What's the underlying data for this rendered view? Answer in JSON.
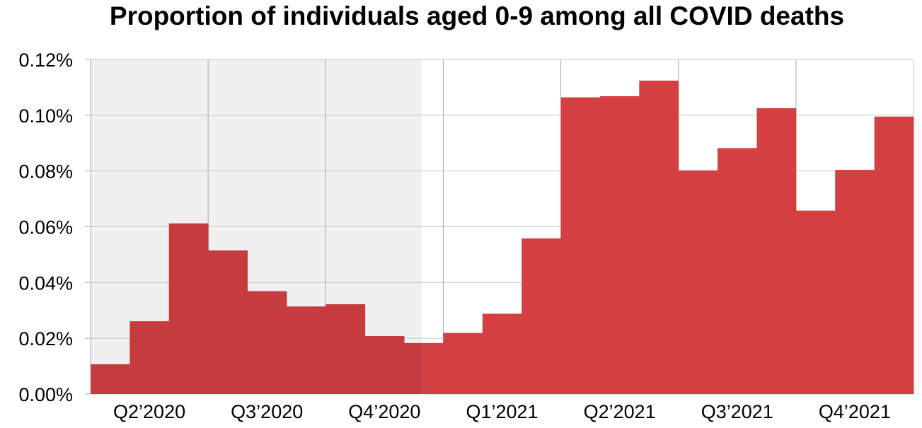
{
  "chart_data": {
    "type": "bar",
    "title": "Proportion of individuals aged 0-9 among all COVID deaths",
    "xlabel": "",
    "ylabel": "",
    "ylim": [
      0,
      0.12
    ],
    "y_ticks": [
      "0.00%",
      "0.02%",
      "0.04%",
      "0.06%",
      "0.08%",
      "0.10%",
      "0.12%"
    ],
    "quarters": [
      "Q2’2020",
      "Q3’2020",
      "Q4’2020",
      "Q1’2021",
      "Q2’2021",
      "Q3’2021",
      "Q4’2021"
    ],
    "values_percent": [
      0.0107,
      0.0261,
      0.0612,
      0.0515,
      0.0369,
      0.0314,
      0.0322,
      0.0208,
      0.0183,
      0.0219,
      0.0288,
      0.0558,
      0.1064,
      0.1068,
      0.1124,
      0.0802,
      0.0882,
      0.1025,
      0.0658,
      0.0804,
      0.0995
    ],
    "shaded_region_until_bar": 8.45,
    "grid": true,
    "colors": {
      "bar": "#d44042",
      "bar_shaded": "#c63b3e",
      "shaded_bg": "#f0f0f0",
      "grid": "#c8c8c8",
      "quarter_line": "#a8a8a8"
    }
  }
}
